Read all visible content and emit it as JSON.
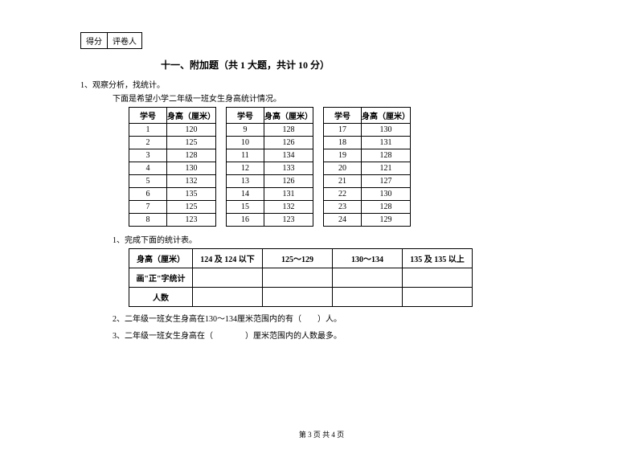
{
  "score_box": {
    "left": "得分",
    "right": "评卷人"
  },
  "section_title": "十一、附加题（共 1 大题，共计 10 分）",
  "q_intro": "1、观察分析，找统计。",
  "q_sub": "下面是希望小学二年级一班女生身高统计情况。",
  "headers": {
    "id": "学号",
    "height": "身高（厘米）"
  },
  "block1": [
    {
      "id": "1",
      "h": "120"
    },
    {
      "id": "2",
      "h": "125"
    },
    {
      "id": "3",
      "h": "128"
    },
    {
      "id": "4",
      "h": "130"
    },
    {
      "id": "5",
      "h": "132"
    },
    {
      "id": "6",
      "h": "135"
    },
    {
      "id": "7",
      "h": "125"
    },
    {
      "id": "8",
      "h": "123"
    }
  ],
  "block2": [
    {
      "id": "9",
      "h": "128"
    },
    {
      "id": "10",
      "h": "126"
    },
    {
      "id": "11",
      "h": "134"
    },
    {
      "id": "12",
      "h": "133"
    },
    {
      "id": "13",
      "h": "126"
    },
    {
      "id": "14",
      "h": "131"
    },
    {
      "id": "15",
      "h": "132"
    },
    {
      "id": "16",
      "h": "123"
    }
  ],
  "block3": [
    {
      "id": "17",
      "h": "130"
    },
    {
      "id": "18",
      "h": "131"
    },
    {
      "id": "19",
      "h": "128"
    },
    {
      "id": "20",
      "h": "121"
    },
    {
      "id": "21",
      "h": "127"
    },
    {
      "id": "22",
      "h": "130"
    },
    {
      "id": "23",
      "h": "128"
    },
    {
      "id": "24",
      "h": "129"
    }
  ],
  "task1": "1、完成下面的统计表。",
  "stat": {
    "row_label_height": "身高（厘米）",
    "ranges": [
      "124 及 124 以下",
      "125～129",
      "130～134",
      "135 及 135 以上"
    ],
    "row_label_tally": "画\"正\"字统计",
    "row_label_count": "人数"
  },
  "q2": "2、二年级一班女生身高在130～134厘米范围内的有（　　）人。",
  "q3": "3、二年级一班女生身高在（　　　　）厘米范围内的人数最多。",
  "footer": "第 3 页 共 4 页"
}
